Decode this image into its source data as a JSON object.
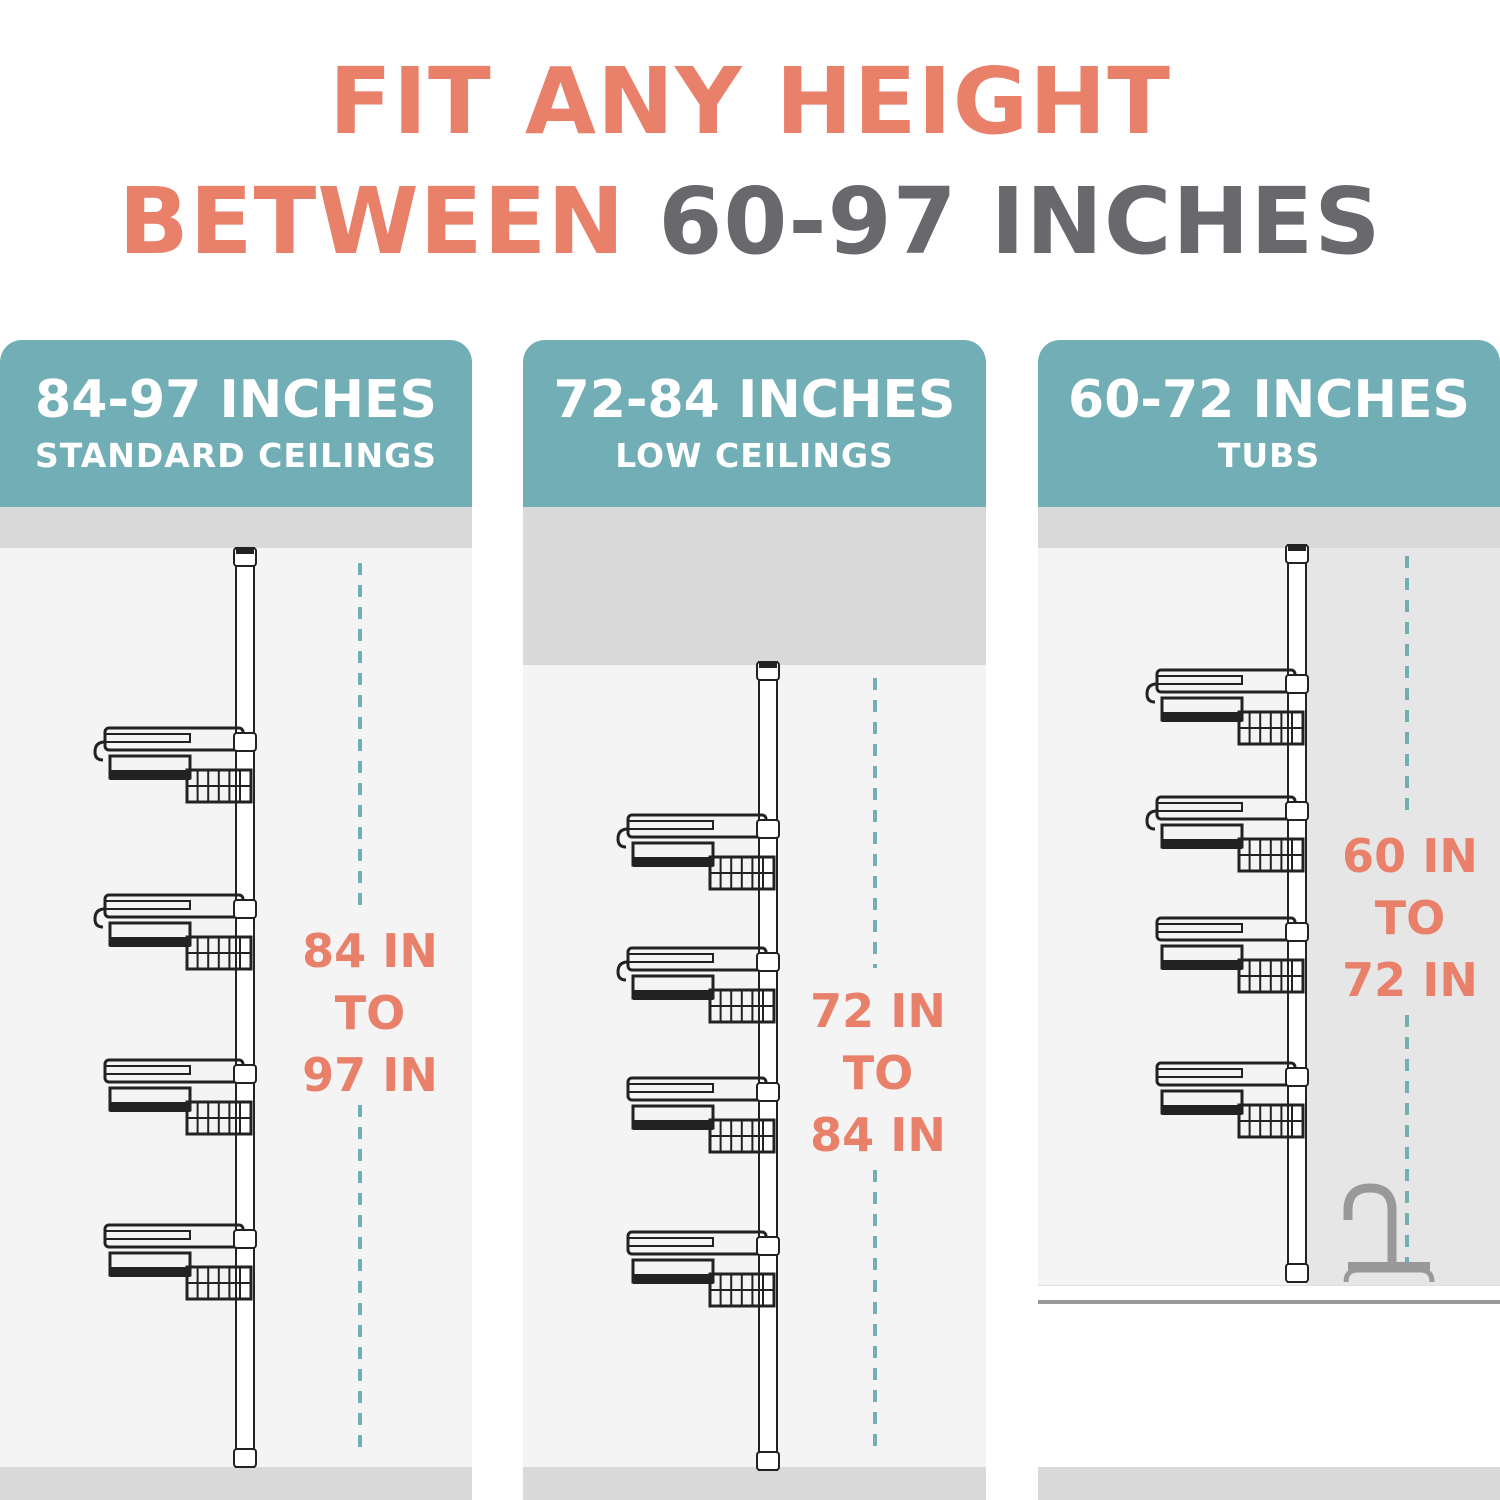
{
  "title": {
    "line1": "FIT ANY HEIGHT",
    "line2_a": "BETWEEN",
    "line2_b": "60-97 INCHES"
  },
  "colors": {
    "accent": "#E8806A",
    "header": "#72AEB5",
    "text_gray": "#68686d"
  },
  "panels": [
    {
      "range": "84-97 INCHES",
      "use": "STANDARD CEILINGS",
      "label": [
        "84 IN",
        "TO",
        "97 IN"
      ],
      "baskets": 4
    },
    {
      "range": "72-84 INCHES",
      "use": "LOW CEILINGS",
      "label": [
        "72 IN",
        "TO",
        "84 IN"
      ],
      "baskets": 4
    },
    {
      "range": "60-72 INCHES",
      "use": "TUBS",
      "label": [
        "60 IN",
        "TO",
        "72 IN"
      ],
      "baskets": 4,
      "faucet-icon": "faucet-icon"
    }
  ]
}
